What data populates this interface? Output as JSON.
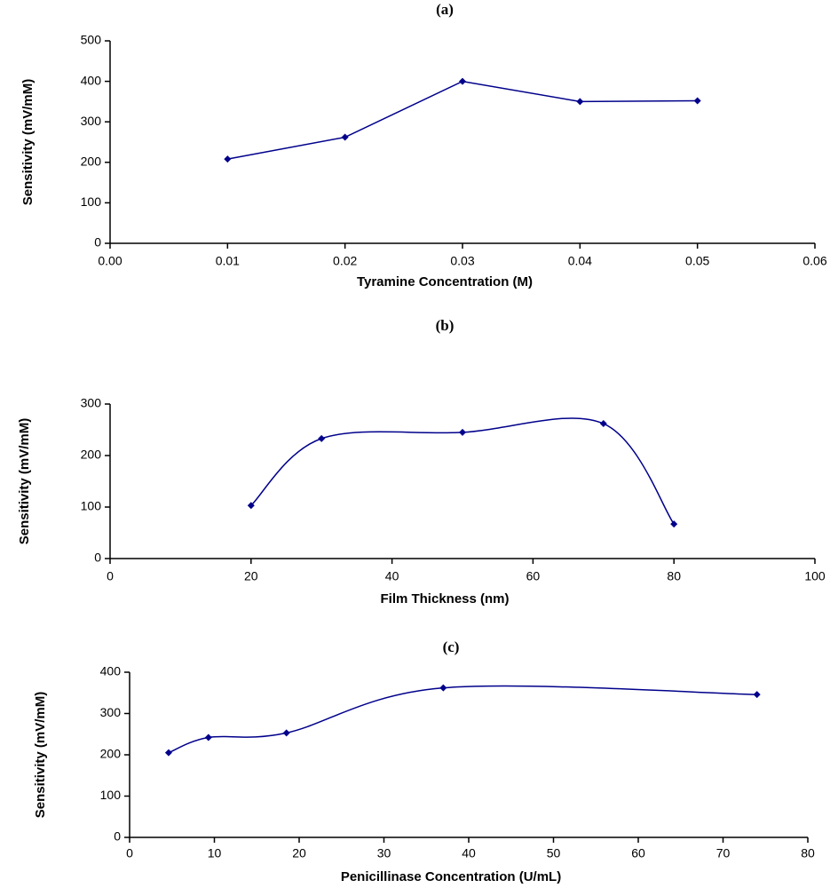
{
  "chart_data": [
    {
      "type": "line",
      "title": "(a)",
      "x": [
        0.01,
        0.02,
        0.03,
        0.04,
        0.05
      ],
      "values": [
        208,
        262,
        400,
        350,
        352
      ],
      "color": "#00008b",
      "smooth": false,
      "xlabel": "Tyramine Concentration (M)",
      "ylabel": "Sensitivity (mV/mM)",
      "xlim": [
        0,
        0.06
      ],
      "xticks": [
        {
          "value": 0,
          "label": "0.00"
        },
        {
          "value": 0.01,
          "label": "0.01"
        },
        {
          "value": 0.02,
          "label": "0.02"
        },
        {
          "value": 0.03,
          "label": "0.03"
        },
        {
          "value": 0.04,
          "label": "0.04"
        },
        {
          "value": 0.05,
          "label": "0.05"
        },
        {
          "value": 0.06,
          "label": "0.06"
        }
      ],
      "ylim": [
        0,
        500
      ],
      "yticks": [
        0,
        100,
        200,
        300,
        400,
        500
      ],
      "grid": false
    },
    {
      "type": "line",
      "title": "(b)",
      "x": [
        20,
        30,
        50,
        70,
        80
      ],
      "values": [
        103,
        233,
        245,
        262,
        67
      ],
      "color": "#00008b",
      "smooth": true,
      "xlabel": "Film Thickness (nm)",
      "ylabel": "Sensitivity (mV/mM)",
      "xlim": [
        0,
        100
      ],
      "xticks": [
        0,
        20,
        40,
        60,
        80,
        100
      ],
      "ylim": [
        0,
        300
      ],
      "yticks": [
        0,
        100,
        200,
        300
      ],
      "grid": false
    },
    {
      "type": "line",
      "title": "(c)",
      "x": [
        4.6,
        9.3,
        18.5,
        37,
        74
      ],
      "values": [
        205,
        242,
        253,
        362,
        346
      ],
      "color": "#00008b",
      "smooth": true,
      "xlabel": "Penicillinase Concentration (U/mL)",
      "ylabel": "Sensitivity (mV/mM)",
      "xlim": [
        0,
        80
      ],
      "xticks": [
        0,
        10,
        20,
        30,
        40,
        50,
        60,
        70,
        80
      ],
      "ylim": [
        0,
        400
      ],
      "yticks": [
        0,
        100,
        200,
        300,
        400
      ],
      "grid": false
    }
  ]
}
